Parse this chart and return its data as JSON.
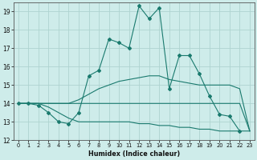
{
  "xlabel": "Humidex (Indice chaleur)",
  "xlim": [
    -0.5,
    23.5
  ],
  "ylim": [
    12,
    19.5
  ],
  "yticks": [
    12,
    13,
    14,
    15,
    16,
    17,
    18,
    19
  ],
  "xticks": [
    0,
    1,
    2,
    3,
    4,
    5,
    6,
    7,
    8,
    9,
    10,
    11,
    12,
    13,
    14,
    15,
    16,
    17,
    18,
    19,
    20,
    21,
    22,
    23
  ],
  "bg_color": "#ceecea",
  "grid_color": "#aed4d0",
  "line_color": "#1a7a6e",
  "series": [
    {
      "y": [
        14.0,
        14.0,
        13.9,
        13.5,
        13.0,
        12.9,
        13.5,
        15.5,
        15.8,
        17.5,
        17.3,
        17.0,
        19.3,
        18.6,
        19.2,
        14.8,
        16.6,
        16.6,
        15.6,
        14.4,
        13.4,
        13.3,
        12.5,
        null
      ],
      "has_marker": true
    },
    {
      "y": [
        14.0,
        14.0,
        14.0,
        14.0,
        14.0,
        14.0,
        14.2,
        14.5,
        14.8,
        15.0,
        15.2,
        15.3,
        15.4,
        15.5,
        15.5,
        15.3,
        15.2,
        15.1,
        15.0,
        15.0,
        15.0,
        15.0,
        14.8,
        12.5
      ],
      "has_marker": false
    },
    {
      "y": [
        14.0,
        14.0,
        14.0,
        14.0,
        14.0,
        14.0,
        14.0,
        14.0,
        14.0,
        14.0,
        14.0,
        14.0,
        14.0,
        14.0,
        14.0,
        14.0,
        14.0,
        14.0,
        14.0,
        14.0,
        14.0,
        14.0,
        14.0,
        12.5
      ],
      "has_marker": false
    },
    {
      "y": [
        14.0,
        14.0,
        14.0,
        13.8,
        13.5,
        13.2,
        13.0,
        13.0,
        13.0,
        13.0,
        13.0,
        13.0,
        12.9,
        12.9,
        12.8,
        12.8,
        12.7,
        12.7,
        12.6,
        12.6,
        12.5,
        12.5,
        12.5,
        12.5
      ],
      "has_marker": false
    }
  ]
}
